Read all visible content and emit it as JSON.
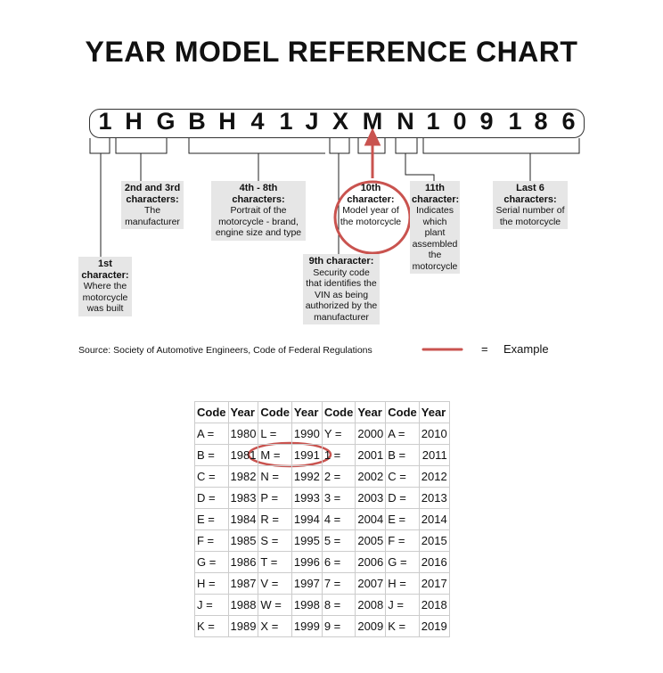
{
  "title": "YEAR MODEL REFERENCE CHART",
  "vin": [
    "1",
    "H",
    "G",
    "B",
    "H",
    "4",
    "1",
    "J",
    "X",
    "M",
    "N",
    "1",
    "0",
    "9",
    "1",
    "8",
    "6"
  ],
  "labels": [
    {
      "head": "1st character:",
      "body": "Where the motorcycle was built"
    },
    {
      "head": "2nd and 3rd characters:",
      "body": "The manufacturer"
    },
    {
      "head": "4th - 8th characters:",
      "body": "Portrait of the motorcycle - brand, engine size and type"
    },
    {
      "head": "9th character:",
      "body": "Security code that identifies the VIN as being authorized by the manufacturer"
    },
    {
      "head": "10th character:",
      "body": "Model year of the motorcycle"
    },
    {
      "head": "11th character:",
      "body": "Indicates which plant assembled the motorcycle"
    },
    {
      "head": "Last 6 characters:",
      "body": "Serial number of the motorcycle"
    }
  ],
  "source": "Source:  Society of Automotive Engineers, Code of Federal Regulations",
  "legend": {
    "equals": "=",
    "label": "Example",
    "color": "#c9534f"
  },
  "table": {
    "headers": [
      "Code",
      "Year",
      "Code",
      "Year",
      "Code",
      "Year",
      "Code",
      "Year"
    ],
    "rows": [
      [
        "A =",
        "1980",
        "L =",
        "1990",
        "Y =",
        "2000",
        "A =",
        "2010"
      ],
      [
        "B =",
        "1981",
        "M =",
        "1991",
        "1 =",
        "2001",
        "B =",
        "2011"
      ],
      [
        "C =",
        "1982",
        "N =",
        "1992",
        "2 =",
        "2002",
        "C =",
        "2012"
      ],
      [
        "D =",
        "1983",
        "P =",
        "1993",
        "3 =",
        "2003",
        "D =",
        "2013"
      ],
      [
        "E =",
        "1984",
        "R =",
        "1994",
        "4 =",
        "2004",
        "E =",
        "2014"
      ],
      [
        "F =",
        "1985",
        "S =",
        "1995",
        "5 =",
        "2005",
        "F =",
        "2015"
      ],
      [
        "G =",
        "1986",
        "T =",
        "1996",
        "6 =",
        "2006",
        "G =",
        "2016"
      ],
      [
        "H =",
        "1987",
        "V =",
        "1997",
        "7 =",
        "2007",
        "H =",
        "2017"
      ],
      [
        "J =",
        "1988",
        "W =",
        "1998",
        "8 =",
        "2008",
        "J =",
        "2018"
      ],
      [
        "K =",
        "1989",
        "X =",
        "1999",
        "9 =",
        "2009",
        "K =",
        "2019"
      ]
    ]
  }
}
